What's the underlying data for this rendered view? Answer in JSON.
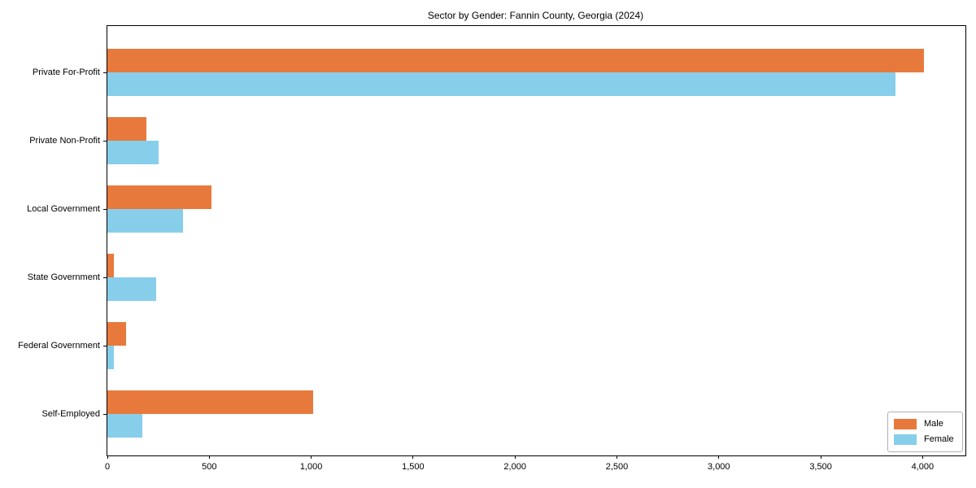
{
  "page": {
    "background": "#ffffff"
  },
  "chart_data": {
    "type": "bar",
    "orientation": "horizontal",
    "title": "Sector by Gender: Fannin County, Georgia (2024)",
    "xlabel": "",
    "ylabel": "",
    "categories": [
      "Private For-Profit",
      "Private Non-Profit",
      "Local Government",
      "State Government",
      "Federal Government",
      "Self-Employed"
    ],
    "series": [
      {
        "name": "Male",
        "color": "#e8793c",
        "values": [
          4005,
          190,
          510,
          30,
          90,
          1010
        ]
      },
      {
        "name": "Female",
        "color": "#87ceeb",
        "values": [
          3865,
          250,
          370,
          240,
          30,
          170
        ]
      }
    ],
    "xlim": [
      0,
      4210
    ],
    "xticks": {
      "values": [
        0,
        500,
        1000,
        1500,
        2000,
        2500,
        3000,
        3500,
        4000
      ],
      "labels": [
        "0",
        "500",
        "1,000",
        "1,500",
        "2,000",
        "2,500",
        "3,000",
        "3,500",
        "4,000"
      ]
    },
    "grid": false,
    "legend": {
      "position": "lower right",
      "entries": [
        "Male",
        "Female"
      ]
    },
    "colors": {
      "axis": "#000000",
      "text": "#000000",
      "legend_border": "#b0b0b0"
    }
  }
}
